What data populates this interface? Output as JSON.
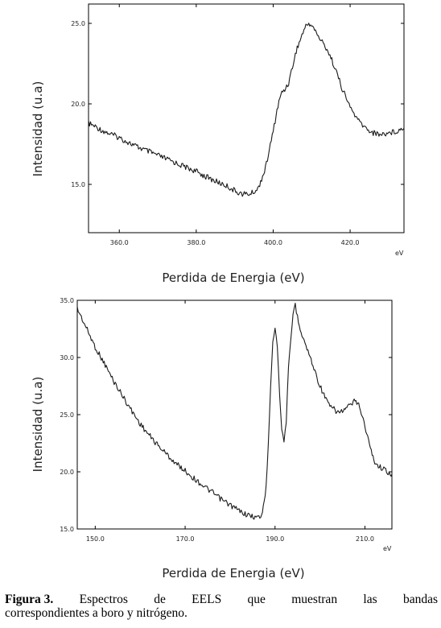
{
  "chart_data": [
    {
      "type": "line",
      "title": "",
      "xlabel": "Perdida de Energia (eV)",
      "ylabel": "Intensidad (u.a)",
      "x_unit": "eV",
      "xlim": [
        352,
        434
      ],
      "ylim": [
        12.0,
        26.2
      ],
      "x_ticks": [
        "360.0",
        "380.0",
        "400.0",
        "420.0"
      ],
      "x_tick_values": [
        360,
        380,
        400,
        420
      ],
      "y_ticks": [
        "15.0",
        "20.0",
        "25.0"
      ],
      "y_tick_values": [
        15,
        20,
        25
      ],
      "grid": false,
      "series": [
        {
          "name": "",
          "x": [
            352,
            356,
            360,
            364,
            368,
            372,
            376,
            380,
            384,
            388,
            390,
            392,
            394,
            396,
            398,
            400,
            401,
            402,
            403,
            404,
            406,
            408,
            409,
            410,
            412,
            414,
            416,
            418,
            420,
            422,
            424,
            426,
            428,
            430,
            432,
            434
          ],
          "y": [
            18.8,
            18.3,
            17.9,
            17.4,
            17.0,
            16.6,
            16.2,
            15.8,
            15.3,
            14.9,
            14.6,
            14.4,
            14.4,
            14.7,
            16.0,
            18.3,
            19.6,
            20.6,
            20.9,
            21.3,
            23.3,
            24.6,
            25.0,
            24.9,
            24.1,
            23.4,
            22.3,
            20.9,
            19.8,
            19.0,
            18.5,
            18.2,
            18.1,
            18.2,
            18.3,
            18.5
          ]
        }
      ]
    },
    {
      "type": "line",
      "title": "",
      "xlabel": "Perdida de Energia (eV)",
      "ylabel": "Intensidad (u.a)",
      "x_unit": "eV",
      "xlim": [
        146,
        216
      ],
      "ylim": [
        15.0,
        35.0
      ],
      "x_ticks": [
        "150.0",
        "170.0",
        "190.0",
        "210.0"
      ],
      "x_tick_values": [
        150,
        170,
        190,
        210
      ],
      "y_ticks": [
        "15.0",
        "20.0",
        "25.0",
        "30.0",
        "35.0"
      ],
      "y_tick_values": [
        15,
        20,
        25,
        30,
        35
      ],
      "grid": false,
      "series": [
        {
          "name": "",
          "x": [
            146,
            148,
            150,
            152,
            154,
            156,
            158,
            160,
            162,
            164,
            166,
            168,
            170,
            172,
            174,
            176,
            178,
            180,
            182,
            184,
            186,
            187,
            188,
            188.5,
            189,
            189.5,
            190,
            190.5,
            191,
            191.5,
            192,
            192.5,
            193,
            194,
            194.5,
            195,
            196,
            198,
            200,
            202,
            204,
            205,
            206,
            207,
            208,
            209,
            210,
            211,
            212,
            213,
            214,
            215,
            216
          ],
          "y": [
            34.3,
            32.6,
            30.9,
            29.5,
            28.0,
            26.7,
            25.4,
            24.2,
            23.2,
            22.3,
            21.5,
            20.7,
            20.1,
            19.4,
            18.8,
            18.2,
            17.6,
            17.1,
            16.6,
            16.2,
            16.0,
            16.1,
            18.5,
            22.5,
            27.5,
            31.5,
            32.6,
            31.0,
            27.0,
            23.5,
            22.8,
            24.5,
            29.0,
            33.8,
            34.7,
            33.5,
            32.0,
            29.8,
            27.5,
            25.8,
            25.2,
            25.3,
            25.6,
            25.9,
            26.3,
            25.5,
            24.0,
            22.4,
            21.0,
            20.5,
            20.3,
            20.0,
            19.8
          ]
        }
      ]
    }
  ],
  "caption": {
    "label": "Figura 3.",
    "words": [
      "Espectros",
      "de",
      "EELS",
      "que",
      "muestran",
      "las",
      "bandas"
    ],
    "line2": "correspondientes a boro  y nitrógeno."
  }
}
